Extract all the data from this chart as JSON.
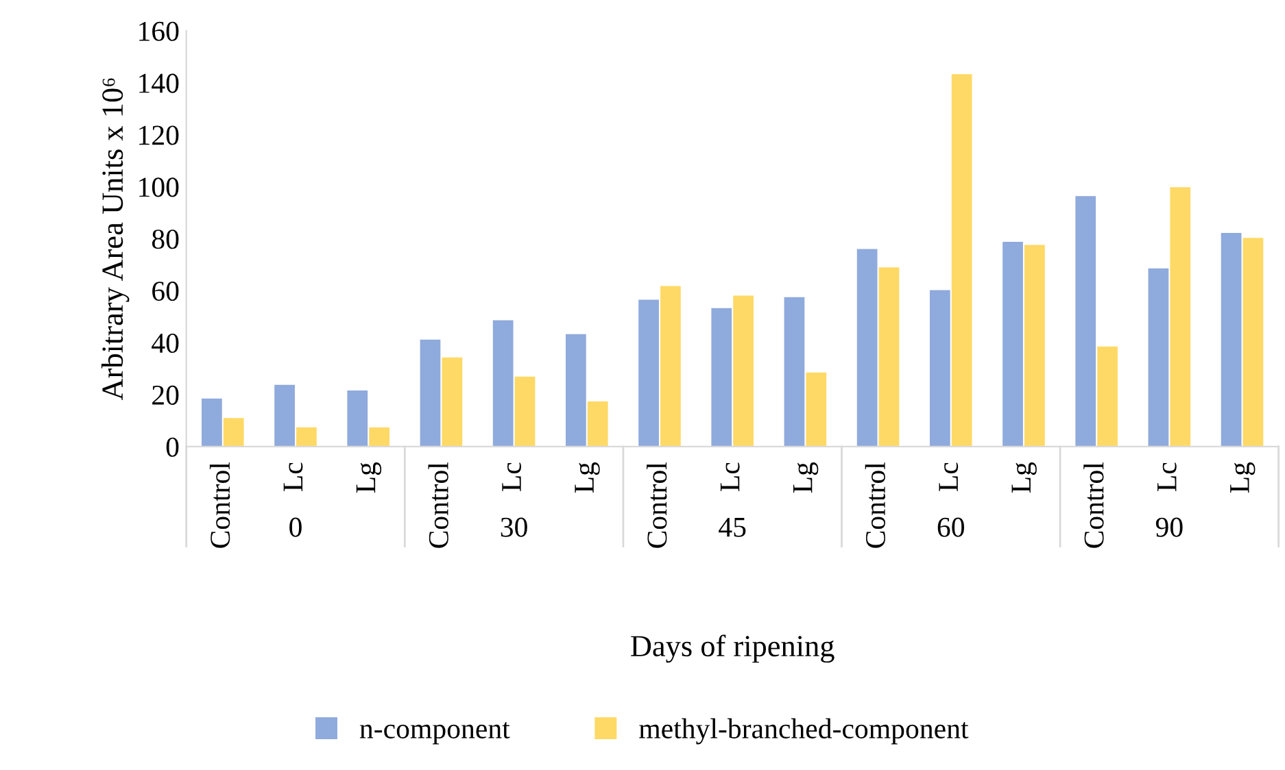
{
  "chart_data": {
    "type": "bar",
    "xlabel": "Days of ripening",
    "ylabel": "Arbitrary Area Units x 10⁶",
    "categories": [
      "Control",
      "Lc",
      "Lg",
      "Control",
      "Lc",
      "Lg",
      "Control",
      "Lc",
      "Lg",
      "Control",
      "Lc",
      "Lg",
      "Control",
      "Lc",
      "Lg"
    ],
    "annotations": [
      "0",
      "30",
      "45",
      "60",
      "90"
    ],
    "series": [
      {
        "name": "n-component",
        "color": "#8faadc",
        "values": [
          18.5,
          23.8,
          21.6,
          41.2,
          48.6,
          43.3,
          56.5,
          53.3,
          57.5,
          76,
          60.2,
          78.8,
          96.4,
          68.6,
          82.2
        ]
      },
      {
        "name": "methyl-branched-component",
        "color": "#ffd966",
        "values": [
          11,
          7.4,
          7.4,
          34.3,
          26.9,
          17.4,
          61.8,
          58.1,
          28.5,
          69,
          143.3,
          77.6,
          38.5,
          99.8,
          80.3
        ]
      }
    ],
    "ylim": [
      0,
      160
    ],
    "yticks": [
      0,
      20,
      40,
      60,
      80,
      100,
      120,
      140,
      160
    ],
    "legend": "bottom"
  }
}
